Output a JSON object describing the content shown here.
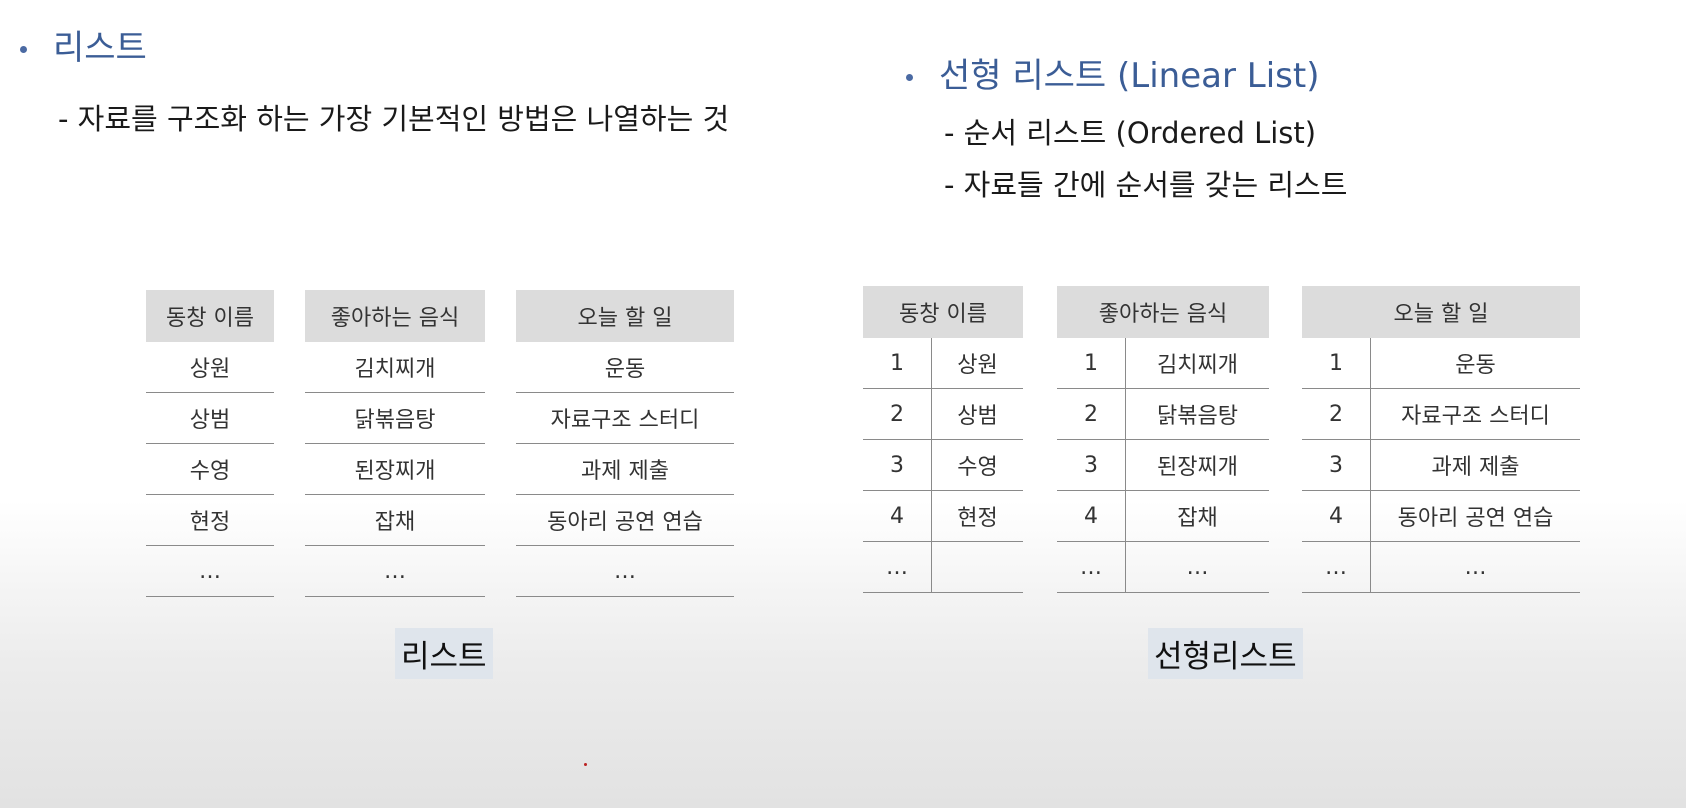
{
  "left": {
    "bullet": "리스트",
    "desc": "- 자료를 구조화 하는 가장 기본적인 방법은 나열하는 것"
  },
  "right": {
    "bullet": "선형 리스트 (Linear List)",
    "desc1": "-  순서 리스트 (Ordered List)",
    "desc2": "-  자료들 간에 순서를 갖는 리스트"
  },
  "headers": [
    "동창 이름",
    "좋아하는 음식",
    "오늘 할 일"
  ],
  "columns": [
    [
      "상원",
      "상범",
      "수영",
      "현정",
      "…"
    ],
    [
      "김치찌개",
      "닭볶음탕",
      "된장찌개",
      "잡채",
      "…"
    ],
    [
      "운동",
      "자료구조 스터디",
      "과제 제출",
      "동아리 공연 연습",
      "…"
    ]
  ],
  "numbers": [
    "1",
    "2",
    "3",
    "4",
    "…"
  ],
  "caption_left": "리스트",
  "caption_right": "선형리스트"
}
